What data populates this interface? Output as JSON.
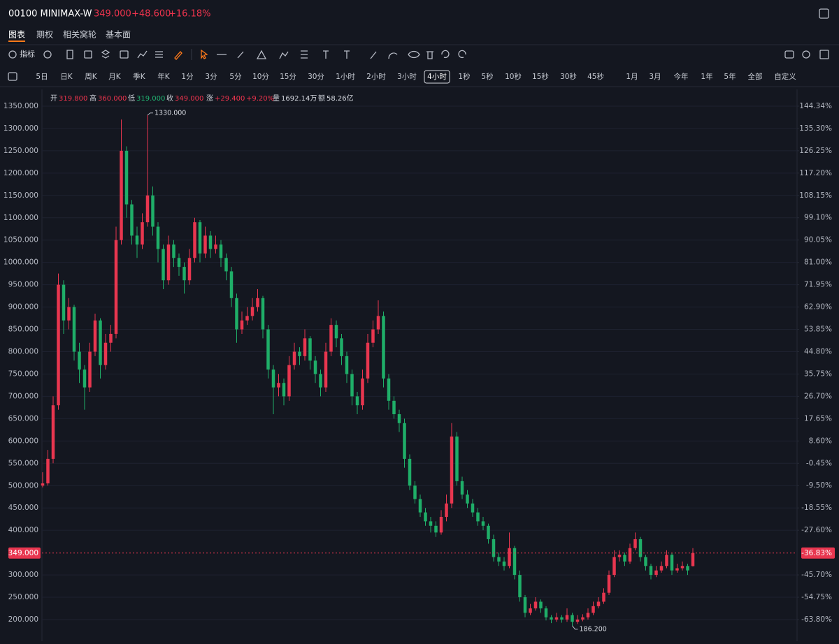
{
  "header": {
    "symbol": "00100 MINIMAX-W",
    "price": "349.000",
    "change": "+48.600",
    "change_pct": "+16.18%",
    "color": "#f0344e"
  },
  "tabs": {
    "items": [
      "图表",
      "期权",
      "相关窝轮",
      "基本面"
    ],
    "active": 0
  },
  "toolbar": {
    "indicator": "指标"
  },
  "periods": {
    "items": [
      "5日",
      "日K",
      "周K",
      "月K",
      "季K",
      "年K",
      "1分",
      "3分",
      "5分",
      "10分",
      "15分",
      "30分",
      "1小时",
      "2小时",
      "3小时",
      "4小时",
      "1秒",
      "5秒",
      "10秒",
      "15秒",
      "30秒",
      "45秒",
      "1月",
      "3月",
      "今年",
      "1年",
      "5年",
      "全部",
      "自定义"
    ],
    "active": 15
  },
  "info": [
    {
      "label": "开",
      "value": "319.800",
      "color": "#f0344e"
    },
    {
      "label": "高",
      "value": "360.000",
      "color": "#f0344e"
    },
    {
      "label": "低",
      "value": "319.000",
      "color": "#22b573"
    },
    {
      "label": "收",
      "value": "349.000",
      "color": "#f0344e"
    },
    {
      "label": "涨",
      "value": "+29.400",
      "pct": "+9.20%",
      "color": "#f0344e"
    },
    {
      "label": "量",
      "value": "1692.14万",
      "color": "#d8dbe2"
    },
    {
      "label": "额",
      "value": "58.26亿",
      "color": "#d8dbe2"
    }
  ],
  "chart_data": {
    "type": "candlestick",
    "up_color": "#e8364f",
    "down_color": "#1fae68",
    "grid": true,
    "ylim": [
      151.5,
      1387.5
    ],
    "yticks": [
      {
        "value": 200,
        "label": "200.000"
      },
      {
        "value": 250,
        "label": "250.000"
      },
      {
        "value": 300,
        "label": "300.000"
      },
      {
        "value": 400,
        "label": "400.000"
      },
      {
        "value": 450,
        "label": "450.000"
      },
      {
        "value": 500,
        "label": "500.000"
      },
      {
        "value": 550,
        "label": "550.000"
      },
      {
        "value": 600,
        "label": "600.000"
      },
      {
        "value": 650,
        "label": "650.000"
      },
      {
        "value": 700,
        "label": "700.000"
      },
      {
        "value": 750,
        "label": "750.000"
      },
      {
        "value": 800,
        "label": "800.000"
      },
      {
        "value": 850,
        "label": "850.000"
      },
      {
        "value": 900,
        "label": "900.000"
      },
      {
        "value": 950,
        "label": "950.000"
      },
      {
        "value": 1000,
        "label": "1000.000"
      },
      {
        "value": 1050,
        "label": "1050.000"
      },
      {
        "value": 1100,
        "label": "1100.000"
      },
      {
        "value": 1150,
        "label": "1150.000"
      },
      {
        "value": 1200,
        "label": "1200.000"
      },
      {
        "value": 1250,
        "label": "1250.000"
      },
      {
        "value": 1300,
        "label": "1300.000"
      },
      {
        "value": 1350,
        "label": "1350.000"
      }
    ],
    "y2lim": [
      -72.58,
      151.13
    ],
    "y2ticks": [
      {
        "value": -63.8,
        "label": "-63.80%"
      },
      {
        "value": -54.75,
        "label": "-54.75%"
      },
      {
        "value": -45.7,
        "label": "-45.70%"
      },
      {
        "value": -27.6,
        "label": "-27.60%"
      },
      {
        "value": -18.55,
        "label": "-18.55%"
      },
      {
        "value": -9.5,
        "label": "-9.50%"
      },
      {
        "value": -0.45,
        "label": "-0.45%"
      },
      {
        "value": 8.6,
        "label": "8.60%"
      },
      {
        "value": 17.65,
        "label": "17.65%"
      },
      {
        "value": 26.7,
        "label": "26.70%"
      },
      {
        "value": 35.75,
        "label": "35.75%"
      },
      {
        "value": 44.8,
        "label": "44.80%"
      },
      {
        "value": 53.85,
        "label": "53.85%"
      },
      {
        "value": 62.9,
        "label": "62.90%"
      },
      {
        "value": 71.95,
        "label": "71.95%"
      },
      {
        "value": 81,
        "label": "81.00%"
      },
      {
        "value": 90.05,
        "label": "90.05%"
      },
      {
        "value": 99.1,
        "label": "99.10%"
      },
      {
        "value": 108.15,
        "label": "108.15%"
      },
      {
        "value": 117.2,
        "label": "117.20%"
      },
      {
        "value": 126.25,
        "label": "126.25%"
      },
      {
        "value": 135.3,
        "label": "135.30%"
      },
      {
        "value": 144.34,
        "label": "144.34%"
      }
    ],
    "last_price": {
      "value": 349,
      "label": "349.000"
    },
    "last_pct": {
      "value": -36.83,
      "label": "-36.83%"
    },
    "max_marker": {
      "value": 1330,
      "label": "1330.000"
    },
    "min_marker": {
      "value": 186.2,
      "label": "186.200"
    },
    "candles": [
      [
        500,
        530,
        496,
        505
      ],
      [
        505,
        580,
        500,
        560
      ],
      [
        560,
        700,
        550,
        680
      ],
      [
        680,
        975,
        670,
        950
      ],
      [
        950,
        960,
        840,
        870
      ],
      [
        870,
        920,
        850,
        900
      ],
      [
        900,
        905,
        780,
        800
      ],
      [
        800,
        820,
        730,
        760
      ],
      [
        760,
        770,
        670,
        720
      ],
      [
        720,
        820,
        710,
        800
      ],
      [
        800,
        885,
        790,
        870
      ],
      [
        870,
        875,
        740,
        770
      ],
      [
        770,
        840,
        760,
        820
      ],
      [
        820,
        860,
        800,
        840
      ],
      [
        840,
        1080,
        830,
        1050
      ],
      [
        1050,
        1320,
        1040,
        1250
      ],
      [
        1250,
        1260,
        1100,
        1130
      ],
      [
        1130,
        1140,
        1040,
        1060
      ],
      [
        1060,
        1080,
        1010,
        1040
      ],
      [
        1040,
        1110,
        1030,
        1090
      ],
      [
        1090,
        1330,
        1080,
        1150
      ],
      [
        1150,
        1170,
        1060,
        1080
      ],
      [
        1080,
        1090,
        1000,
        1030
      ],
      [
        1030,
        1040,
        940,
        960
      ],
      [
        960,
        1060,
        950,
        1040
      ],
      [
        1040,
        1050,
        990,
        1010
      ],
      [
        1010,
        1020,
        970,
        990
      ],
      [
        990,
        1000,
        930,
        960
      ],
      [
        960,
        1030,
        950,
        1010
      ],
      [
        1010,
        1100,
        1000,
        1090
      ],
      [
        1090,
        1095,
        1000,
        1020
      ],
      [
        1020,
        1080,
        1010,
        1060
      ],
      [
        1060,
        1070,
        1010,
        1030
      ],
      [
        1030,
        1060,
        1020,
        1040
      ],
      [
        1040,
        1050,
        990,
        1010
      ],
      [
        1010,
        1020,
        960,
        980
      ],
      [
        980,
        990,
        900,
        920
      ],
      [
        920,
        930,
        820,
        850
      ],
      [
        850,
        890,
        840,
        870
      ],
      [
        870,
        900,
        860,
        880
      ],
      [
        880,
        920,
        870,
        900
      ],
      [
        900,
        940,
        890,
        920
      ],
      [
        920,
        925,
        830,
        850
      ],
      [
        850,
        860,
        740,
        760
      ],
      [
        760,
        770,
        660,
        720
      ],
      [
        720,
        750,
        700,
        730
      ],
      [
        730,
        740,
        680,
        700
      ],
      [
        700,
        790,
        690,
        770
      ],
      [
        770,
        820,
        760,
        800
      ],
      [
        800,
        810,
        770,
        790
      ],
      [
        790,
        850,
        780,
        830
      ],
      [
        830,
        835,
        760,
        780
      ],
      [
        780,
        790,
        730,
        750
      ],
      [
        750,
        760,
        700,
        720
      ],
      [
        720,
        820,
        710,
        800
      ],
      [
        800,
        875,
        790,
        860
      ],
      [
        860,
        870,
        810,
        830
      ],
      [
        830,
        840,
        770,
        790
      ],
      [
        790,
        800,
        730,
        750
      ],
      [
        750,
        760,
        680,
        700
      ],
      [
        700,
        710,
        660,
        680
      ],
      [
        680,
        760,
        670,
        740
      ],
      [
        740,
        840,
        730,
        820
      ],
      [
        820,
        870,
        810,
        850
      ],
      [
        850,
        915,
        840,
        880
      ],
      [
        880,
        890,
        720,
        740
      ],
      [
        740,
        750,
        670,
        690
      ],
      [
        690,
        700,
        650,
        660
      ],
      [
        660,
        670,
        620,
        640
      ],
      [
        640,
        650,
        540,
        560
      ],
      [
        560,
        570,
        490,
        500
      ],
      [
        500,
        510,
        460,
        470
      ],
      [
        470,
        480,
        430,
        440
      ],
      [
        440,
        450,
        410,
        420
      ],
      [
        420,
        430,
        395,
        410
      ],
      [
        410,
        420,
        385,
        395
      ],
      [
        395,
        445,
        390,
        430
      ],
      [
        430,
        480,
        420,
        460
      ],
      [
        460,
        640,
        450,
        610
      ],
      [
        610,
        620,
        500,
        510
      ],
      [
        510,
        520,
        470,
        480
      ],
      [
        480,
        490,
        450,
        460
      ],
      [
        460,
        470,
        430,
        440
      ],
      [
        440,
        450,
        410,
        420
      ],
      [
        420,
        430,
        400,
        410
      ],
      [
        410,
        415,
        370,
        380
      ],
      [
        380,
        390,
        330,
        340
      ],
      [
        340,
        350,
        320,
        330
      ],
      [
        330,
        340,
        310,
        320
      ],
      [
        320,
        395,
        315,
        360
      ],
      [
        360,
        365,
        290,
        300
      ],
      [
        300,
        310,
        240,
        250
      ],
      [
        250,
        255,
        205,
        215
      ],
      [
        215,
        235,
        210,
        225
      ],
      [
        225,
        250,
        220,
        240
      ],
      [
        240,
        245,
        215,
        225
      ],
      [
        225,
        230,
        198,
        205
      ],
      [
        205,
        210,
        192,
        200
      ],
      [
        200,
        215,
        195,
        205
      ],
      [
        205,
        210,
        193,
        200
      ],
      [
        200,
        225,
        195,
        210
      ],
      [
        210,
        215,
        186.2,
        195
      ],
      [
        195,
        210,
        190,
        200
      ],
      [
        200,
        212,
        196,
        205
      ],
      [
        205,
        225,
        200,
        215
      ],
      [
        215,
        240,
        210,
        230
      ],
      [
        230,
        250,
        225,
        240
      ],
      [
        240,
        270,
        235,
        260
      ],
      [
        260,
        310,
        255,
        300
      ],
      [
        300,
        355,
        295,
        340
      ],
      [
        340,
        355,
        330,
        345
      ],
      [
        345,
        350,
        320,
        330
      ],
      [
        330,
        370,
        325,
        360
      ],
      [
        360,
        395,
        355,
        380
      ],
      [
        380,
        385,
        330,
        340
      ],
      [
        340,
        345,
        310,
        320
      ],
      [
        320,
        325,
        290,
        300
      ],
      [
        300,
        320,
        295,
        310
      ],
      [
        310,
        330,
        305,
        320
      ],
      [
        320,
        355,
        315,
        345
      ],
      [
        345,
        350,
        300,
        310
      ],
      [
        310,
        325,
        305,
        315
      ],
      [
        315,
        330,
        310,
        320
      ],
      [
        320,
        325,
        300,
        310
      ],
      [
        319.8,
        360,
        319,
        349
      ]
    ]
  }
}
